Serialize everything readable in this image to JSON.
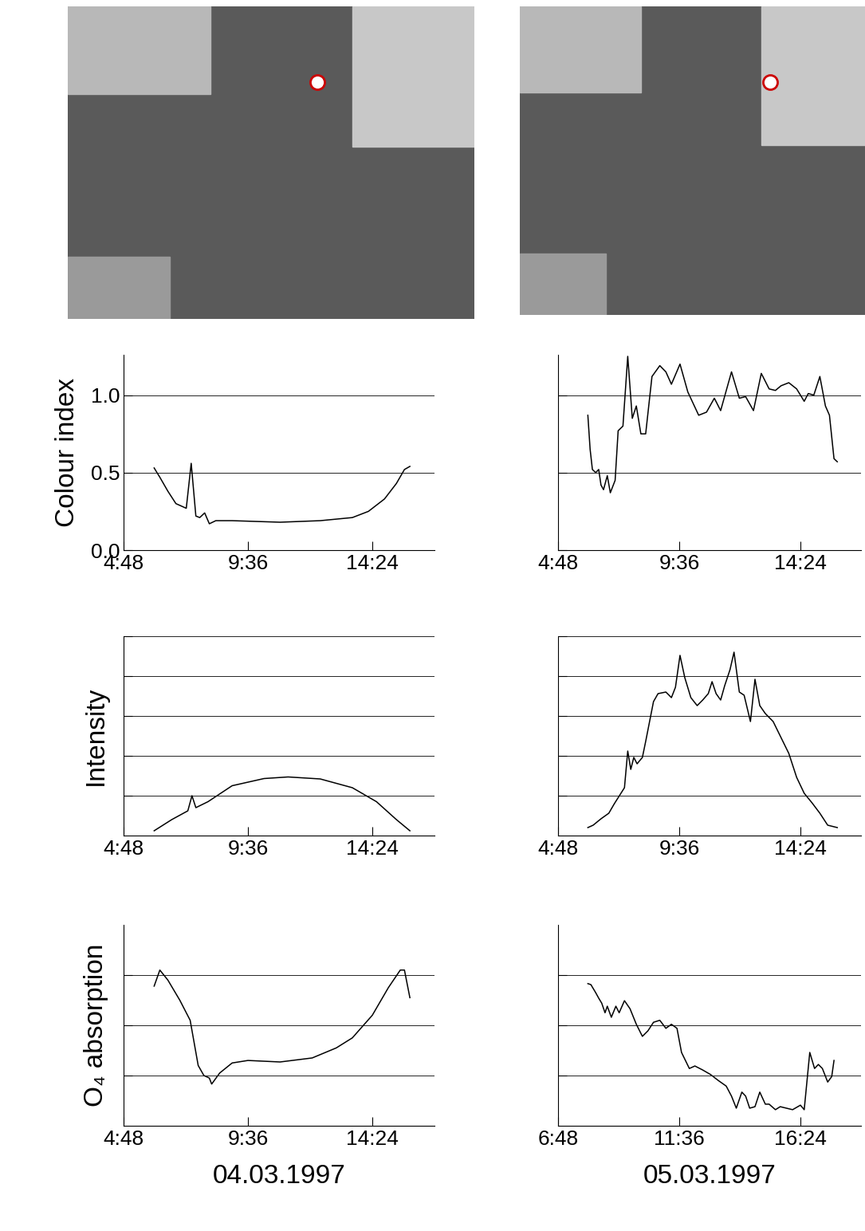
{
  "chart_data": [
    {
      "type": "line",
      "y_label": "Colour index",
      "color": "#000000",
      "grid": true,
      "tick_labels": true,
      "x": [
        5.98,
        6.2,
        6.51,
        6.82,
        7.22,
        7.41,
        7.59,
        7.74,
        7.93,
        8.11,
        8.36,
        8.99,
        10.84,
        12.39,
        13.63,
        14.25,
        14.87,
        15.33,
        15.64,
        15.85
      ],
      "values": [
        0.53,
        0.47,
        0.38,
        0.3,
        0.27,
        0.56,
        0.22,
        0.21,
        0.24,
        0.17,
        0.19,
        0.19,
        0.18,
        0.19,
        0.21,
        0.25,
        0.33,
        0.43,
        0.52,
        0.54
      ],
      "xlim": [
        4.8,
        16.8
      ],
      "xticks": [
        {
          "value": 4.8,
          "label": "4:48"
        },
        {
          "value": 9.6,
          "label": "9:36"
        },
        {
          "value": 14.4,
          "label": "14:24"
        }
      ],
      "ylim": [
        0,
        1.26
      ],
      "yticks": [
        0.0,
        0.5,
        1.0
      ]
    },
    {
      "type": "line",
      "y_label": "Intensity",
      "color": "#000000",
      "grid": true,
      "tick_labels": "x",
      "x": [
        5.98,
        6.66,
        7.28,
        7.44,
        7.59,
        8.06,
        8.99,
        10.22,
        11.15,
        12.39,
        13.63,
        14.56,
        15.33,
        15.85
      ],
      "values": [
        0.12,
        0.4,
        0.62,
        1.0,
        0.7,
        0.85,
        1.25,
        1.43,
        1.47,
        1.42,
        1.2,
        0.85,
        0.4,
        0.12
      ],
      "xlim": [
        4.8,
        16.8
      ],
      "xticks": [
        {
          "value": 4.8,
          "label": "4:48"
        },
        {
          "value": 9.6,
          "label": "9:36"
        },
        {
          "value": 14.4,
          "label": "14:24"
        }
      ],
      "ylim": [
        0,
        5
      ],
      "yticks": [
        1,
        2,
        3,
        4,
        5
      ]
    },
    {
      "type": "line",
      "y_label": "O₄ absorption",
      "color": "#000000",
      "grid": true,
      "tick_labels": "x",
      "x": [
        5.98,
        6.2,
        6.51,
        6.97,
        7.37,
        7.68,
        7.9,
        8.11,
        8.2,
        8.51,
        8.99,
        9.6,
        10.84,
        12.08,
        13.01,
        13.63,
        14.4,
        15.02,
        15.48,
        15.64,
        15.85
      ],
      "values": [
        2.78,
        3.1,
        2.9,
        2.5,
        2.1,
        1.2,
        1.0,
        0.95,
        0.83,
        1.05,
        1.25,
        1.3,
        1.27,
        1.35,
        1.55,
        1.75,
        2.2,
        2.75,
        3.1,
        3.1,
        2.55
      ],
      "xlim": [
        4.8,
        16.8
      ],
      "xticks": [
        {
          "value": 4.8,
          "label": "4:48"
        },
        {
          "value": 9.6,
          "label": "9:36"
        },
        {
          "value": 14.4,
          "label": "14:24"
        }
      ],
      "ylim": [
        0,
        4
      ],
      "yticks": [
        1,
        2,
        3
      ]
    },
    {
      "type": "line",
      "y_label": null,
      "color": "#000000",
      "grid": true,
      "tick_labels": "x",
      "x": [
        5.98,
        6.07,
        6.16,
        6.29,
        6.41,
        6.5,
        6.6,
        6.75,
        6.87,
        7.06,
        7.18,
        7.37,
        7.56,
        7.74,
        7.9,
        8.08,
        8.27,
        8.52,
        8.83,
        9.07,
        9.29,
        9.63,
        9.94,
        10.37,
        10.68,
        10.99,
        11.24,
        11.67,
        11.98,
        12.23,
        12.54,
        12.85,
        13.16,
        13.41,
        13.63,
        13.94,
        14.25,
        14.55,
        14.71,
        14.93,
        15.17,
        15.39,
        15.55,
        15.73,
        15.86
      ],
      "values": [
        0.87,
        0.65,
        0.52,
        0.5,
        0.52,
        0.42,
        0.39,
        0.48,
        0.37,
        0.45,
        0.77,
        0.8,
        1.25,
        0.85,
        0.93,
        0.75,
        0.75,
        1.12,
        1.19,
        1.15,
        1.07,
        1.2,
        1.02,
        0.87,
        0.89,
        0.98,
        0.9,
        1.15,
        0.98,
        0.99,
        0.9,
        1.14,
        1.04,
        1.03,
        1.06,
        1.08,
        1.04,
        0.96,
        1.01,
        1.0,
        1.12,
        0.93,
        0.87,
        0.59,
        0.57
      ],
      "xlim": [
        4.8,
        16.8
      ],
      "xticks": [
        {
          "value": 4.8,
          "label": "4:48"
        },
        {
          "value": 9.6,
          "label": "9:36"
        },
        {
          "value": 14.4,
          "label": "14:24"
        }
      ],
      "ylim": [
        0,
        1.26
      ],
      "yticks": [
        0.0,
        0.5,
        1.0
      ]
    },
    {
      "type": "line",
      "y_label": null,
      "color": "#000000",
      "grid": true,
      "tick_labels": "x",
      "x": [
        5.98,
        6.19,
        6.5,
        6.81,
        7.03,
        7.43,
        7.56,
        7.68,
        7.8,
        7.93,
        8.14,
        8.27,
        8.58,
        8.76,
        9.07,
        9.29,
        9.45,
        9.63,
        9.82,
        10.06,
        10.31,
        10.53,
        10.75,
        10.9,
        11.06,
        11.24,
        11.4,
        11.61,
        11.77,
        11.98,
        12.17,
        12.42,
        12.6,
        12.79,
        13.01,
        13.32,
        13.63,
        13.94,
        14.25,
        14.55,
        14.86,
        15.17,
        15.48,
        15.86
      ],
      "values": [
        0.2,
        0.26,
        0.42,
        0.56,
        0.8,
        1.2,
        2.12,
        1.66,
        1.96,
        1.8,
        1.96,
        2.36,
        3.36,
        3.56,
        3.6,
        3.46,
        3.72,
        4.52,
        3.96,
        3.46,
        3.26,
        3.4,
        3.56,
        3.86,
        3.56,
        3.4,
        3.76,
        4.16,
        4.6,
        3.6,
        3.52,
        2.86,
        3.92,
        3.26,
        3.06,
        2.86,
        2.46,
        2.06,
        1.46,
        1.06,
        0.82,
        0.56,
        0.26,
        0.2
      ],
      "xlim": [
        4.8,
        16.8
      ],
      "xticks": [
        {
          "value": 4.8,
          "label": "4:48"
        },
        {
          "value": 9.6,
          "label": "9:36"
        },
        {
          "value": 14.4,
          "label": "14:24"
        }
      ],
      "ylim": [
        0,
        5
      ],
      "yticks": [
        1,
        2,
        3,
        4,
        5
      ]
    },
    {
      "type": "line",
      "y_label": null,
      "color": "#000000",
      "grid": true,
      "tick_labels": "x",
      "x": [
        7.98,
        8.1,
        8.29,
        8.41,
        8.53,
        8.66,
        8.75,
        8.91,
        9.09,
        9.22,
        9.43,
        9.65,
        9.9,
        10.14,
        10.36,
        10.58,
        10.83,
        11.07,
        11.29,
        11.51,
        11.69,
        12.0,
        12.22,
        12.53,
        12.84,
        13.15,
        13.46,
        13.67,
        13.86,
        14.08,
        14.23,
        14.39,
        14.6,
        14.79,
        15.01,
        15.16,
        15.41,
        15.6,
        16.09,
        16.4,
        16.55,
        16.77,
        16.96,
        17.11,
        17.27,
        17.48,
        17.64,
        17.73
      ],
      "values": [
        2.83,
        2.81,
        2.65,
        2.54,
        2.44,
        2.25,
        2.38,
        2.16,
        2.38,
        2.25,
        2.49,
        2.33,
        2.02,
        1.78,
        1.89,
        2.06,
        2.1,
        1.94,
        2.02,
        1.94,
        1.46,
        1.14,
        1.19,
        1.11,
        1.02,
        0.9,
        0.79,
        0.59,
        0.35,
        0.67,
        0.59,
        0.35,
        0.38,
        0.67,
        0.43,
        0.43,
        0.32,
        0.38,
        0.32,
        0.41,
        0.32,
        1.46,
        1.14,
        1.22,
        1.14,
        0.87,
        0.98,
        1.3
      ],
      "xlim": [
        6.8,
        18.8
      ],
      "xticks": [
        {
          "value": 6.8,
          "label": "6:48"
        },
        {
          "value": 11.6,
          "label": "11:36"
        },
        {
          "value": 16.4,
          "label": "16:24"
        }
      ],
      "ylim": [
        0,
        4
      ],
      "yticks": [
        1,
        2,
        3
      ]
    }
  ],
  "dates": [
    "04.03.1997",
    "05.03.1997"
  ]
}
